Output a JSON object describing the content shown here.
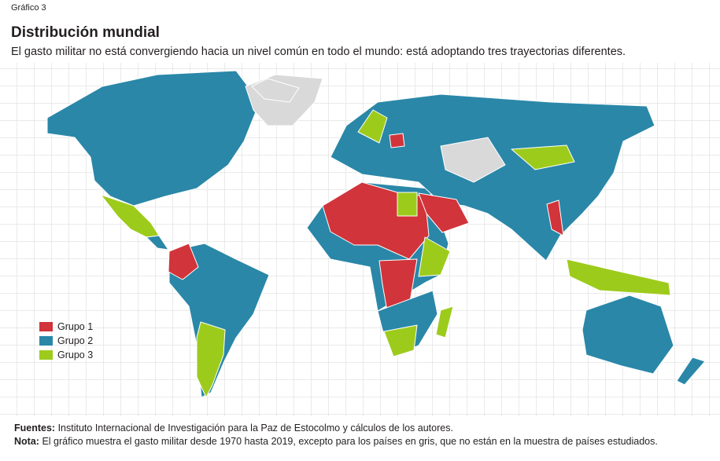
{
  "header": {
    "label": "Gráfico 3",
    "title": "Distribución mundial",
    "subtitle": "El gasto militar no está convergiendo hacia un nivel común en todo el mundo: está adoptando tres trayectorias diferentes."
  },
  "legend": {
    "items": [
      {
        "label": "Grupo 1",
        "color": "#d1343a"
      },
      {
        "label": "Grupo 2",
        "color": "#2a87a8"
      },
      {
        "label": "Grupo 3",
        "color": "#9dcb1c"
      }
    ]
  },
  "footer": {
    "sources": {
      "label": "Fuentes:",
      "text": "Instituto Internacional de Investigación para la Paz de Estocolmo y cálculos de los autores."
    },
    "note": {
      "label": "Nota:",
      "text": "El gráfico muestra el gasto militar desde 1970 hasta 2019, excepto para los países en gris, que no están en la muestra de países estudiados."
    }
  }
}
